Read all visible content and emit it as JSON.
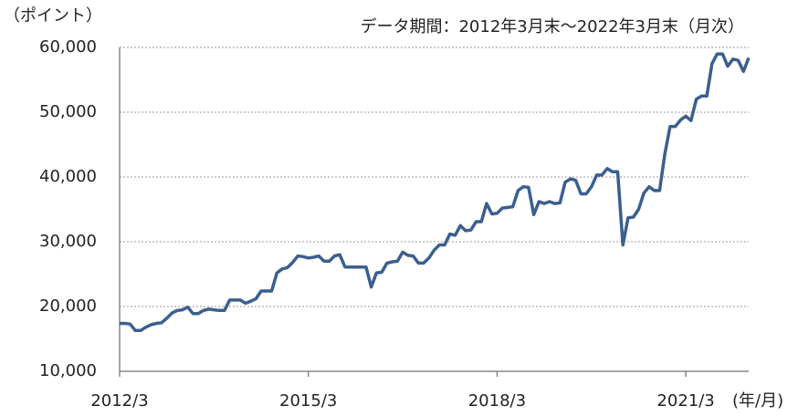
{
  "chart_data": {
    "type": "line",
    "subtitle": "データ期間：2012年3月末～2022年3月末（月次）",
    "y_label": "（ポイント）",
    "x_label": "(年/月)",
    "x": [
      "2012/3",
      "2012/4",
      "2012/5",
      "2012/6",
      "2012/7",
      "2012/8",
      "2012/9",
      "2012/10",
      "2012/11",
      "2012/12",
      "2013/1",
      "2013/2",
      "2013/3",
      "2013/4",
      "2013/5",
      "2013/6",
      "2013/7",
      "2013/8",
      "2013/9",
      "2013/10",
      "2013/11",
      "2013/12",
      "2014/1",
      "2014/2",
      "2014/3",
      "2014/4",
      "2014/5",
      "2014/6",
      "2014/7",
      "2014/8",
      "2014/9",
      "2014/10",
      "2014/11",
      "2014/12",
      "2015/1",
      "2015/2",
      "2015/3",
      "2015/4",
      "2015/5",
      "2015/6",
      "2015/7",
      "2015/8",
      "2015/9",
      "2015/10",
      "2015/11",
      "2015/12",
      "2016/1",
      "2016/2",
      "2016/3",
      "2016/4",
      "2016/5",
      "2016/6",
      "2016/7",
      "2016/8",
      "2016/9",
      "2016/10",
      "2016/11",
      "2016/12",
      "2017/1",
      "2017/2",
      "2017/3",
      "2017/4",
      "2017/5",
      "2017/6",
      "2017/7",
      "2017/8",
      "2017/9",
      "2017/10",
      "2017/11",
      "2017/12",
      "2018/1",
      "2018/2",
      "2018/3",
      "2018/4",
      "2018/5",
      "2018/6",
      "2018/7",
      "2018/8",
      "2018/9",
      "2018/10",
      "2018/11",
      "2018/12",
      "2019/1",
      "2019/2",
      "2019/3",
      "2019/4",
      "2019/5",
      "2019/6",
      "2019/7",
      "2019/8",
      "2019/9",
      "2019/10",
      "2019/11",
      "2019/12",
      "2020/1",
      "2020/2",
      "2020/3",
      "2020/4",
      "2020/5",
      "2020/6",
      "2020/7",
      "2020/8",
      "2020/9",
      "2020/10",
      "2020/11",
      "2020/12",
      "2021/1",
      "2021/2",
      "2021/3",
      "2021/4",
      "2021/5",
      "2021/6",
      "2021/7",
      "2021/8",
      "2021/9",
      "2021/10",
      "2021/11",
      "2021/12",
      "2022/1",
      "2022/2",
      "2022/3"
    ],
    "series": [
      {
        "color": "#3b5f8e",
        "values": [
          17400,
          17400,
          17300,
          16300,
          16300,
          16800,
          17200,
          17400,
          17500,
          18200,
          19000,
          19400,
          19500,
          19900,
          18900,
          18900,
          19400,
          19600,
          19500,
          19400,
          19400,
          21000,
          21000,
          21000,
          20500,
          20800,
          21200,
          22400,
          22400,
          22400,
          25200,
          25800,
          26000,
          26800,
          27800,
          27700,
          27500,
          27600,
          27800,
          27000,
          27000,
          27800,
          28000,
          26100,
          26100,
          26100,
          26100,
          26100,
          23000,
          25200,
          25300,
          26700,
          26900,
          27000,
          28400,
          27900,
          27800,
          26700,
          26700,
          27500,
          28700,
          29500,
          29500,
          31200,
          31000,
          32500,
          31700,
          31800,
          33100,
          33100,
          35900,
          34300,
          34400,
          35200,
          35300,
          35400,
          37900,
          38500,
          38400,
          34200,
          36200,
          35900,
          36200,
          35900,
          36000,
          39200,
          39700,
          39500,
          37400,
          37400,
          38500,
          40300,
          40300,
          41300,
          40800,
          40800,
          29500,
          33700,
          33800,
          35000,
          37500,
          38500,
          37900,
          37900,
          43500,
          47800,
          47800,
          48800,
          49400,
          48700,
          52000,
          52500,
          52500,
          57500,
          59000,
          59000,
          57100,
          58200,
          58000,
          56300,
          58400
        ]
      }
    ],
    "ylim": [
      10000,
      60000
    ],
    "yticks": [
      {
        "value": 10000,
        "label": "10,000"
      },
      {
        "value": 20000,
        "label": "20,000"
      },
      {
        "value": 30000,
        "label": "30,000"
      },
      {
        "value": 40000,
        "label": "40,000"
      },
      {
        "value": 50000,
        "label": "50,000"
      },
      {
        "value": 60000,
        "label": "60,000"
      }
    ],
    "xticks": [
      "2012/3",
      "2015/3",
      "2018/3",
      "2021/3"
    ],
    "grid": true
  }
}
